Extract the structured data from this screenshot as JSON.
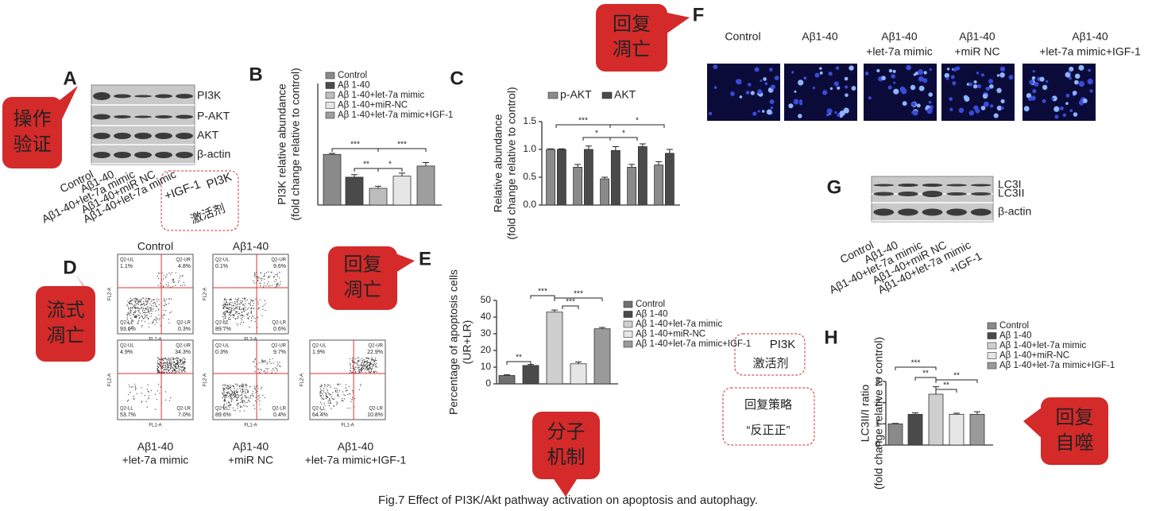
{
  "chart_data": [
    {
      "type": "bar",
      "ylabel": [
        "PI3K relative abundance",
        "(fold change relative to control)"
      ],
      "ylim": [
        0,
        2.4
      ],
      "series": [
        {
          "name": "Control",
          "color": "#8a8a8a",
          "values": [
            1.0
          ],
          "errors": [
            0.02
          ]
        },
        {
          "name": "Aβ 1-40",
          "color": "#4a4a4a",
          "values": [
            0.55
          ],
          "errors": [
            0.05
          ]
        },
        {
          "name": "Aβ 1-40+let-7a mimic",
          "color": "#bdbdbd",
          "values": [
            0.33
          ],
          "errors": [
            0.04
          ]
        },
        {
          "name": "Aβ 1-40+miR-NC",
          "color": "#e6e6e6",
          "values": [
            0.57
          ],
          "errors": [
            0.06
          ]
        },
        {
          "name": "Aβ 1-40+let-7a mimic+IGF-1",
          "color": "#9e9e9e",
          "values": [
            0.77
          ],
          "errors": [
            0.07
          ]
        }
      ],
      "annotations": [
        "***",
        "***",
        "**",
        "*"
      ]
    },
    {
      "type": "bar",
      "ylabel": [
        "Relative abundance",
        "(fold change relative to control)"
      ],
      "ylim": [
        0,
        1.5
      ],
      "yticks": [
        {
          "value": 0,
          "label": "0.0"
        },
        {
          "value": 0.5,
          "label": "0.5"
        },
        {
          "value": 1,
          "label": "1.0"
        },
        {
          "value": 1.5,
          "label": "1.5"
        }
      ],
      "series": [
        {
          "name": "p-AKT",
          "color": "#8a8a8a",
          "values": [
            1.0,
            0.68,
            0.47,
            0.68,
            0.72
          ],
          "errors": [
            0.01,
            0.05,
            0.03,
            0.05,
            0.06
          ]
        },
        {
          "name": "AKT",
          "color": "#4a4a4a",
          "values": [
            1.0,
            1.0,
            0.98,
            1.05,
            0.93
          ],
          "errors": [
            0.01,
            0.06,
            0.07,
            0.05,
            0.07
          ]
        }
      ],
      "annotations": [
        "***",
        "*",
        "*",
        "*"
      ]
    },
    {
      "type": "bar",
      "ylabel": [
        "Percentage of apoptosis cells",
        "(UR+LR)"
      ],
      "ylim": [
        0,
        50
      ],
      "yticks": [
        0,
        10,
        20,
        30,
        40,
        50
      ],
      "series": [
        {
          "name": "Control",
          "color": "#707070",
          "values": [
            5
          ],
          "errors": [
            0.4
          ]
        },
        {
          "name": "Aβ 1-40",
          "color": "#4a4a4a",
          "values": [
            11
          ],
          "errors": [
            0.6
          ]
        },
        {
          "name": "Aβ 1-40+let-7a mimic",
          "color": "#cfcfcf",
          "values": [
            43
          ],
          "errors": [
            1.2
          ]
        },
        {
          "name": "Aβ 1-40+miR-NC",
          "color": "#e6e6e6",
          "values": [
            12
          ],
          "errors": [
            1.1
          ]
        },
        {
          "name": "Aβ 1-40+let-7a mimic+IGF-1",
          "color": "#9a9a9a",
          "values": [
            33
          ],
          "errors": [
            0.8
          ]
        }
      ],
      "annotations": [
        "**",
        "***",
        "***",
        "***"
      ]
    },
    {
      "type": "bar",
      "ylabel": [
        "LC3II/I ratio",
        "(fold change relative to control)"
      ],
      "ylim": [
        0,
        3
      ],
      "yticks": [
        0,
        1,
        2,
        3
      ],
      "series": [
        {
          "name": "Control",
          "color": "#8a8a8a",
          "values": [
            1.0
          ],
          "errors": [
            0.02
          ]
        },
        {
          "name": "Aβ 1-40",
          "color": "#4a4a4a",
          "values": [
            1.45
          ],
          "errors": [
            0.07
          ]
        },
        {
          "name": "Aβ 1-40+let-7a mimic",
          "color": "#cfcfcf",
          "values": [
            2.4
          ],
          "errors": [
            0.35
          ]
        },
        {
          "name": "Aβ 1-40+miR-NC",
          "color": "#e6e6e6",
          "values": [
            1.45
          ],
          "errors": [
            0.05
          ]
        },
        {
          "name": "Aβ 1-40+let-7a mimic+IGF-1",
          "color": "#9a9a9a",
          "values": [
            1.45
          ],
          "errors": [
            0.12
          ]
        }
      ],
      "annotations": [
        "***",
        "**",
        "**",
        "**"
      ]
    }
  ],
  "panel_labels": [
    "A",
    "B",
    "C",
    "D",
    "E",
    "F",
    "G",
    "H"
  ],
  "blot_a": {
    "rows": [
      "PI3K",
      "P-AKT",
      "AKT",
      "β-actin"
    ],
    "lanes": [
      [
        "Control"
      ],
      [
        "Aβ1-40"
      ],
      [
        "Aβ1-40+let-7a mimic"
      ],
      [
        "Aβ1-40+miR NC"
      ],
      [
        "Aβ1-40+let-7a mimic"
      ]
    ],
    "extra": "+IGF-1"
  },
  "blot_g": {
    "rows": [
      "LC3I",
      "LC3II",
      "β-actin"
    ],
    "lanes": [
      [
        "Control"
      ],
      [
        "Aβ1-40"
      ],
      [
        "Aβ1-40+let-7a mimic"
      ],
      [
        "Aβ1-40+miR NC"
      ],
      [
        "Aβ1-40+let-7a mimic",
        "+IGF-1"
      ]
    ]
  },
  "flow": {
    "quadrants": [
      "Q2-UL",
      "Q2-UR",
      "Q2-LL",
      "Q2-LR"
    ],
    "x_axis": "FL1-A",
    "y_axis": "FL2-A",
    "plots": [
      {
        "title": [
          "Control"
        ],
        "percents": [
          "1.1%",
          "4.8%",
          "93.6%",
          "0.3%"
        ]
      },
      {
        "title": [
          "Aβ1-40"
        ],
        "percents": [
          "0.1%",
          "9.6%",
          "89.7%",
          "0.6%"
        ]
      },
      {
        "title": [
          "Aβ1-40",
          "+let-7a mimic"
        ],
        "percents": [
          "4.9%",
          "34.3%",
          "53.7%",
          "7.0%"
        ]
      },
      {
        "title": [
          "Aβ1-40",
          "+miR NC"
        ],
        "percents": [
          "0.3%",
          "9.7%",
          "89.6%",
          "0.4%"
        ]
      },
      {
        "title": [
          "Aβ1-40",
          "+let-7a mimic+IGF-1"
        ],
        "percents": [
          "1.9%",
          "22.9%",
          "64.4%",
          "10.8%"
        ]
      }
    ]
  },
  "images": {
    "titles": [
      [
        "Control"
      ],
      [
        "Aβ1-40"
      ],
      [
        "Aβ1-40",
        "+let-7a mimic"
      ],
      [
        "Aβ1-40",
        "+miR NC"
      ],
      [
        "Aβ1-40",
        "+let-7a mimic+IGF-1"
      ]
    ]
  },
  "callouts": [
    [
      "操作",
      "验证"
    ],
    [
      "回复",
      "凋亡"
    ],
    [
      "流式",
      "凋亡"
    ],
    [
      "回复",
      "凋亡"
    ],
    [
      "分子",
      "机制"
    ],
    [
      "回复",
      "自噬"
    ]
  ],
  "activator_a": [
    "PI3K",
    "激活剂"
  ],
  "notes": [
    [
      "PI3K",
      "激活剂"
    ],
    [
      "回复策略",
      "“反正正”"
    ]
  ],
  "caption": "Fig.7 Effect of PI3K/Akt pathway activation on apoptosis and autophagy."
}
